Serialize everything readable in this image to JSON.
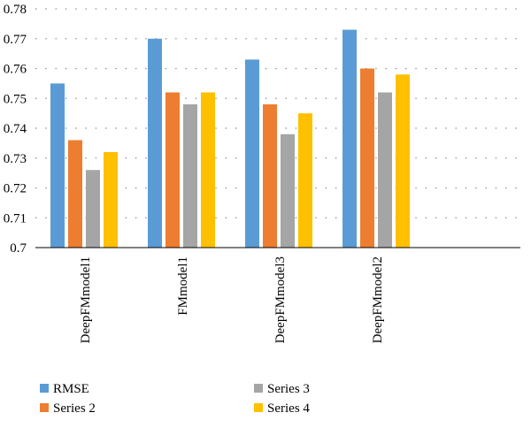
{
  "chart_data": {
    "type": "bar",
    "categories": [
      "DeepFMmodel1",
      "FMmodel1",
      "DeepFMmodel3",
      "DeepFMmodel2"
    ],
    "series": [
      {
        "name": "RMSE",
        "color": "#5B9BD5",
        "values": [
          0.755,
          0.77,
          0.763,
          0.773
        ]
      },
      {
        "name": "Series 2",
        "color": "#ED7D31",
        "values": [
          0.736,
          0.752,
          0.748,
          0.76
        ]
      },
      {
        "name": "Series 3",
        "color": "#A5A5A5",
        "values": [
          0.726,
          0.748,
          0.738,
          0.752
        ]
      },
      {
        "name": "Series 4",
        "color": "#FFC000",
        "values": [
          0.732,
          0.752,
          0.745,
          0.758
        ]
      }
    ],
    "yticks": [
      "0.7",
      "0.71",
      "0.72",
      "0.73",
      "0.74",
      "0.75",
      "0.76",
      "0.77",
      "0.78"
    ],
    "ylim": [
      0.7,
      0.78
    ],
    "grid": true,
    "gridline_style": "dotted",
    "legend_position": "bottom"
  }
}
